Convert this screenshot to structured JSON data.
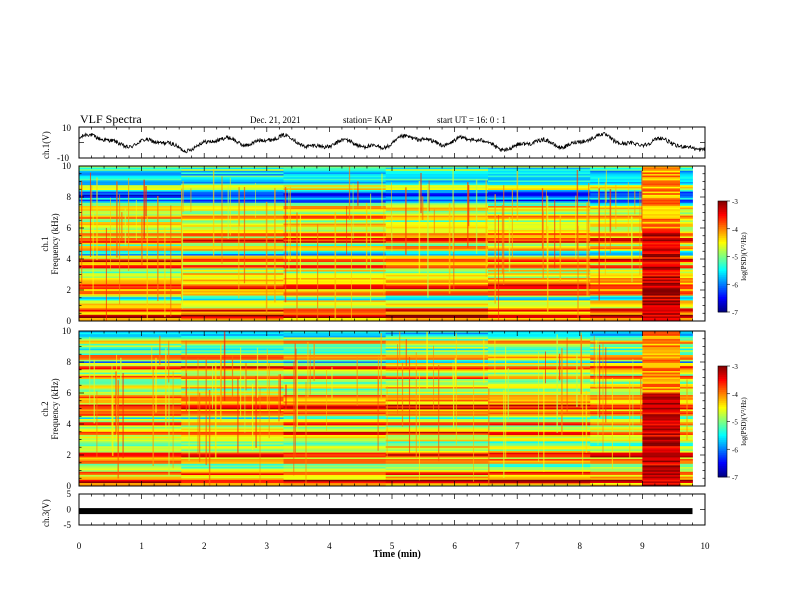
{
  "header": {
    "title": "VLF Spectra",
    "date": "Dec. 21, 2021",
    "station": "station= KAP",
    "start": "start  UT =   16: 0  : 1"
  },
  "chart_data": [
    {
      "type": "line",
      "panel": "ch1-waveform",
      "ylabel": "ch.1(V)",
      "ylim": [
        -10,
        10
      ],
      "yticks": [
        "10",
        "-10"
      ],
      "xlim": [
        0,
        10
      ],
      "line_color": "#000000"
    },
    {
      "type": "heatmap",
      "panel": "ch1-spectrogram",
      "ylabel": "ch.1 Frequency (kHz)",
      "ylim": [
        0,
        10
      ],
      "yticks": [
        "0",
        "2",
        "4",
        "6",
        "8",
        "10"
      ],
      "xlim": [
        0,
        10
      ],
      "data_xlim": [
        0,
        9.8
      ],
      "colorbar": {
        "label": "log(PSD)(V²/Hz)",
        "range": [
          -7,
          -3
        ],
        "ticks": [
          "-3",
          "-4",
          "-5",
          "-6",
          "-7"
        ]
      },
      "bands_khz": [
        {
          "f": 0.3,
          "v": -3.2
        },
        {
          "f": 0.7,
          "v": -3.6
        },
        {
          "f": 1.2,
          "v": -4.5
        },
        {
          "f": 1.8,
          "v": -4.0
        },
        {
          "f": 2.2,
          "v": -3.6
        },
        {
          "f": 2.6,
          "v": -4.2
        },
        {
          "f": 3.0,
          "v": -4.6
        },
        {
          "f": 3.5,
          "v": -3.8
        },
        {
          "f": 3.9,
          "v": -3.5
        },
        {
          "f": 4.7,
          "v": -4.2
        },
        {
          "f": 5.2,
          "v": -3.6
        },
        {
          "f": 5.6,
          "v": -3.9
        },
        {
          "f": 6.2,
          "v": -4.4
        },
        {
          "f": 6.7,
          "v": -4.0
        },
        {
          "f": 7.3,
          "v": -4.3
        },
        {
          "f": 8.6,
          "v": -4.5
        }
      ],
      "noise_event": {
        "x_start": 9.0,
        "x_end": 9.6,
        "f_range": [
          0,
          10
        ]
      }
    },
    {
      "type": "heatmap",
      "panel": "ch2-spectrogram",
      "ylabel": "ch.2 Frequency (kHz)",
      "ylim": [
        0,
        10
      ],
      "yticks": [
        "0",
        "2",
        "4",
        "6",
        "8",
        "10"
      ],
      "xlim": [
        0,
        10
      ],
      "data_xlim": [
        0,
        9.8
      ],
      "colorbar": {
        "label": "log(PSD)(V²/Hz)",
        "range": [
          -7,
          -3
        ],
        "ticks": [
          "-3",
          "-4",
          "-5",
          "-6",
          "-7"
        ]
      },
      "bands_khz": [
        {
          "f": 0.3,
          "v": -3.3
        },
        {
          "f": 0.8,
          "v": -3.7
        },
        {
          "f": 1.6,
          "v": -4.0
        },
        {
          "f": 2.0,
          "v": -3.5
        },
        {
          "f": 2.5,
          "v": -4.4
        },
        {
          "f": 3.0,
          "v": -4.5
        },
        {
          "f": 3.4,
          "v": -3.6
        },
        {
          "f": 4.0,
          "v": -3.8
        },
        {
          "f": 4.7,
          "v": -3.9
        },
        {
          "f": 5.1,
          "v": -3.5
        },
        {
          "f": 5.8,
          "v": -4.0
        },
        {
          "f": 6.4,
          "v": -4.2
        },
        {
          "f": 7.0,
          "v": -3.9
        },
        {
          "f": 7.6,
          "v": -3.6
        },
        {
          "f": 8.3,
          "v": -4.1
        },
        {
          "f": 9.3,
          "v": -4.0
        }
      ],
      "noise_event": {
        "x_start": 9.0,
        "x_end": 9.6,
        "f_range": [
          0,
          10
        ]
      }
    },
    {
      "type": "line",
      "panel": "ch3-waveform",
      "ylabel": "ch.3(V)",
      "ylim": [
        -5,
        5
      ],
      "yticks": [
        "5",
        "0",
        "-5"
      ],
      "xlim": [
        0,
        10
      ],
      "data_xlim": [
        0,
        9.8
      ],
      "level": -0.5,
      "xlabel": "Time  (min)",
      "xticks": [
        "0",
        "1",
        "2",
        "3",
        "4",
        "5",
        "6",
        "7",
        "8",
        "9",
        "10"
      ]
    }
  ]
}
